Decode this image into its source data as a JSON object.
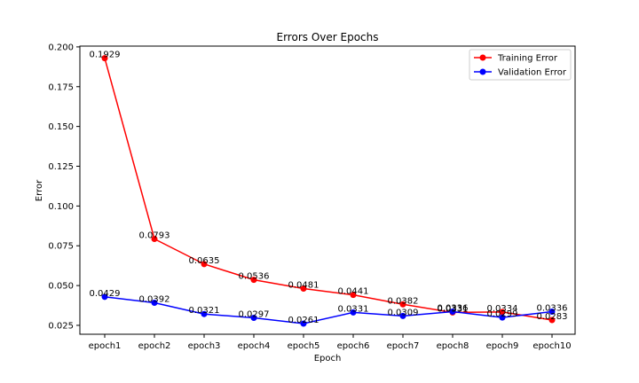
{
  "chart_data": {
    "type": "line",
    "title": "Errors Over Epochs",
    "xlabel": "Epoch",
    "ylabel": "Error",
    "categories": [
      "epoch1",
      "epoch2",
      "epoch3",
      "epoch4",
      "epoch5",
      "epoch6",
      "epoch7",
      "epoch8",
      "epoch9",
      "epoch10"
    ],
    "ylim": [
      0.0194,
      0.2005
    ],
    "yticks": [
      "0.025",
      "0.050",
      "0.075",
      "0.100",
      "0.125",
      "0.150",
      "0.175",
      "0.200"
    ],
    "yticks_values": [
      0.025,
      0.05,
      0.075,
      0.1,
      0.125,
      0.15,
      0.175,
      0.2
    ],
    "grid": false,
    "legend_position": "top-right",
    "series": [
      {
        "name": "Training Error",
        "color": "#ff0000",
        "values": [
          0.1929,
          0.0793,
          0.0635,
          0.0536,
          0.0481,
          0.0441,
          0.0382,
          0.0331,
          0.0334,
          0.0283
        ],
        "labels": [
          "0.1929",
          "0.0793",
          "0.0635",
          "0.0536",
          "0.0481",
          "0.0441",
          "0.0382",
          "0.0331",
          "0.0334",
          "0.0283"
        ]
      },
      {
        "name": "Validation Error",
        "color": "#0000ff",
        "values": [
          0.0429,
          0.0392,
          0.0321,
          0.0297,
          0.0261,
          0.0331,
          0.0309,
          0.0336,
          0.0299,
          0.0336
        ],
        "labels": [
          "0.0429",
          "0.0392",
          "0.0321",
          "0.0297",
          "0.0261",
          "0.0331",
          "0.0309",
          "0.0336",
          "0.0299",
          "0.0336"
        ]
      }
    ]
  }
}
